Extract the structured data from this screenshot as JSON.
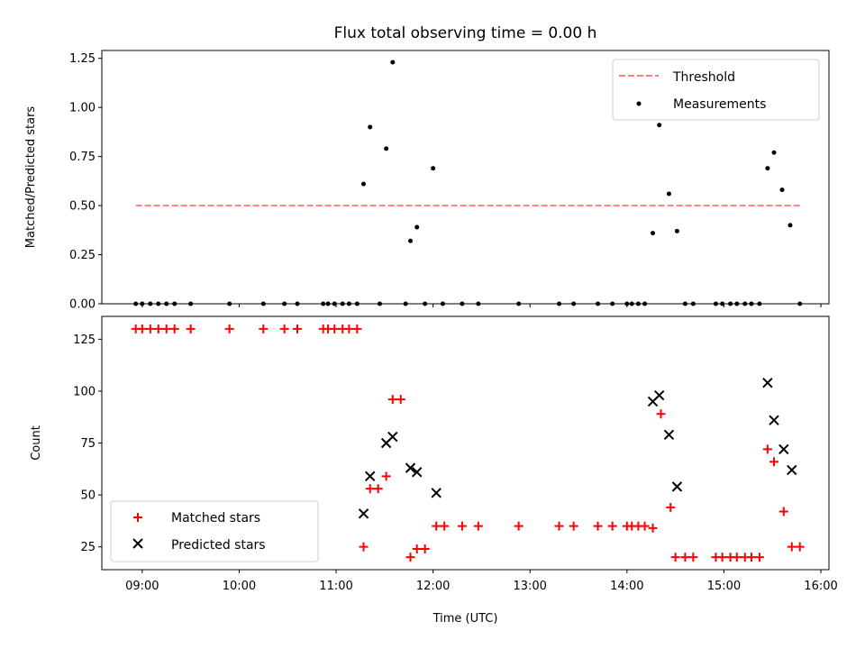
{
  "colors": {
    "threshold": "#ff7f7f",
    "measurement": "#000000",
    "matched": "#ff0000",
    "predicted": "#000000",
    "legend_border": "#cccccc"
  },
  "chart_data": [
    {
      "type": "scatter",
      "title": "Flux total observing time = 0.00 h",
      "xlabel": "",
      "ylabel": "Matched/Predicted stars",
      "xlim": [
        "08:35",
        "16:05"
      ],
      "ylim": [
        0,
        1.29
      ],
      "yticks": [
        0.0,
        0.25,
        0.5,
        0.75,
        1.0,
        1.25
      ],
      "ytick_labels": [
        "0.00",
        "0.25",
        "0.50",
        "0.75",
        "1.00",
        "1.25"
      ],
      "legend": {
        "placement": "top-right",
        "entries": [
          "Threshold",
          "Measurements"
        ]
      },
      "threshold": {
        "name": "Threshold",
        "y": 0.5,
        "x_start": "08:56",
        "x_end": "15:47",
        "style": "dashed"
      },
      "series": [
        {
          "name": "Measurements",
          "points": [
            [
              "08:56",
              0
            ],
            [
              "09:00",
              0
            ],
            [
              "09:05",
              0
            ],
            [
              "09:10",
              0
            ],
            [
              "09:15",
              0
            ],
            [
              "09:20",
              0
            ],
            [
              "09:30",
              0
            ],
            [
              "09:54",
              0
            ],
            [
              "10:15",
              0
            ],
            [
              "10:28",
              0
            ],
            [
              "10:36",
              0
            ],
            [
              "10:52",
              0
            ],
            [
              "10:55",
              0
            ],
            [
              "10:59",
              0
            ],
            [
              "11:04",
              0
            ],
            [
              "11:08",
              0
            ],
            [
              "11:13",
              0
            ],
            [
              "11:17",
              0.61
            ],
            [
              "11:21",
              0.9
            ],
            [
              "11:27",
              0
            ],
            [
              "11:31",
              0.79
            ],
            [
              "11:35",
              1.23
            ],
            [
              "11:43",
              0
            ],
            [
              "11:46",
              0.32
            ],
            [
              "11:50",
              0.39
            ],
            [
              "11:55",
              0
            ],
            [
              "12:00",
              0.69
            ],
            [
              "12:06",
              0
            ],
            [
              "12:18",
              0
            ],
            [
              "12:28",
              0
            ],
            [
              "12:53",
              0
            ],
            [
              "13:18",
              0
            ],
            [
              "13:27",
              0
            ],
            [
              "13:42",
              0
            ],
            [
              "13:51",
              0
            ],
            [
              "14:00",
              0
            ],
            [
              "14:03",
              0
            ],
            [
              "14:07",
              0
            ],
            [
              "14:11",
              0
            ],
            [
              "14:16",
              0.36
            ],
            [
              "14:20",
              0.91
            ],
            [
              "14:26",
              0.56
            ],
            [
              "14:31",
              0.37
            ],
            [
              "14:36",
              0
            ],
            [
              "14:41",
              0
            ],
            [
              "14:55",
              0
            ],
            [
              "14:59",
              0
            ],
            [
              "15:04",
              0
            ],
            [
              "15:08",
              0
            ],
            [
              "15:13",
              0
            ],
            [
              "15:17",
              0
            ],
            [
              "15:22",
              0
            ],
            [
              "15:27",
              0.69
            ],
            [
              "15:31",
              0.77
            ],
            [
              "15:36",
              0.58
            ],
            [
              "15:41",
              0.4
            ],
            [
              "15:47",
              0
            ]
          ]
        }
      ]
    },
    {
      "type": "scatter",
      "title": "",
      "xlabel": "Time (UTC)",
      "ylabel": "Count",
      "xlim": [
        "08:35",
        "16:05"
      ],
      "ylim": [
        14,
        136
      ],
      "xticks": [
        "09:00",
        "10:00",
        "11:00",
        "12:00",
        "13:00",
        "14:00",
        "15:00",
        "16:00"
      ],
      "yticks": [
        25,
        50,
        75,
        100,
        125
      ],
      "ytick_labels": [
        "25",
        "50",
        "75",
        "100",
        "125"
      ],
      "legend": {
        "placement": "bottom-left",
        "entries": [
          "Matched stars",
          "Predicted stars"
        ]
      },
      "series": [
        {
          "name": "Matched stars",
          "points": [
            [
              "08:56",
              130
            ],
            [
              "09:00",
              130
            ],
            [
              "09:05",
              130
            ],
            [
              "09:10",
              130
            ],
            [
              "09:15",
              130
            ],
            [
              "09:20",
              130
            ],
            [
              "09:30",
              130
            ],
            [
              "09:54",
              130
            ],
            [
              "10:15",
              130
            ],
            [
              "10:28",
              130
            ],
            [
              "10:36",
              130
            ],
            [
              "10:52",
              130
            ],
            [
              "10:55",
              130
            ],
            [
              "10:59",
              130
            ],
            [
              "11:04",
              130
            ],
            [
              "11:08",
              130
            ],
            [
              "11:13",
              130
            ],
            [
              "11:17",
              25
            ],
            [
              "11:21",
              53
            ],
            [
              "11:26",
              53
            ],
            [
              "11:31",
              59
            ],
            [
              "11:35",
              96
            ],
            [
              "11:40",
              96
            ],
            [
              "11:46",
              20
            ],
            [
              "11:50",
              24
            ],
            [
              "11:55",
              24
            ],
            [
              "12:02",
              35
            ],
            [
              "12:07",
              35
            ],
            [
              "12:18",
              35
            ],
            [
              "12:28",
              35
            ],
            [
              "12:53",
              35
            ],
            [
              "13:18",
              35
            ],
            [
              "13:27",
              35
            ],
            [
              "13:42",
              35
            ],
            [
              "13:51",
              35
            ],
            [
              "14:00",
              35
            ],
            [
              "14:03",
              35
            ],
            [
              "14:07",
              35
            ],
            [
              "14:11",
              35
            ],
            [
              "14:16",
              34
            ],
            [
              "14:21",
              89
            ],
            [
              "14:27",
              44
            ],
            [
              "14:30",
              20
            ],
            [
              "14:36",
              20
            ],
            [
              "14:41",
              20
            ],
            [
              "14:55",
              20
            ],
            [
              "14:59",
              20
            ],
            [
              "15:04",
              20
            ],
            [
              "15:08",
              20
            ],
            [
              "15:13",
              20
            ],
            [
              "15:17",
              20
            ],
            [
              "15:22",
              20
            ],
            [
              "15:27",
              72
            ],
            [
              "15:31",
              66
            ],
            [
              "15:37",
              42
            ],
            [
              "15:42",
              25
            ],
            [
              "15:47",
              25
            ]
          ]
        },
        {
          "name": "Predicted stars",
          "points": [
            [
              "11:17",
              41
            ],
            [
              "11:21",
              59
            ],
            [
              "11:31",
              75
            ],
            [
              "11:35",
              78
            ],
            [
              "11:46",
              63
            ],
            [
              "11:50",
              61
            ],
            [
              "12:02",
              51
            ],
            [
              "14:16",
              95
            ],
            [
              "14:20",
              98
            ],
            [
              "14:26",
              79
            ],
            [
              "14:31",
              54
            ],
            [
              "15:27",
              104
            ],
            [
              "15:31",
              86
            ],
            [
              "15:37",
              72
            ],
            [
              "15:42",
              62
            ]
          ]
        }
      ]
    }
  ]
}
